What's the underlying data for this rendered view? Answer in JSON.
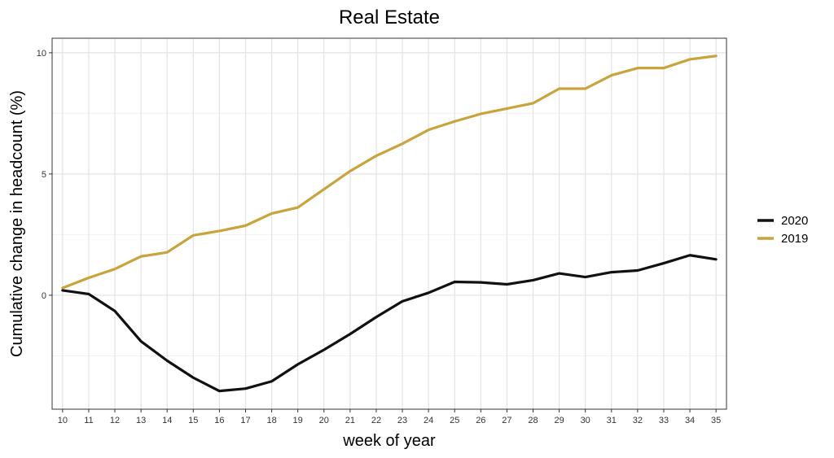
{
  "chart_data": {
    "type": "line",
    "title": "Real Estate",
    "xlabel": "week of year",
    "ylabel": "Cumulative change in headcount (%)",
    "x": [
      10,
      11,
      12,
      13,
      14,
      15,
      16,
      17,
      18,
      19,
      20,
      21,
      22,
      23,
      24,
      25,
      26,
      27,
      28,
      29,
      30,
      31,
      32,
      33,
      34,
      35
    ],
    "xlim": [
      9.6,
      35.4
    ],
    "ylim": [
      -4.7,
      10.6
    ],
    "yticks": [
      0,
      5,
      10
    ],
    "grid": true,
    "legend_position": "right",
    "series": [
      {
        "name": "2020",
        "color": "#111111",
        "values": [
          0.2,
          0.05,
          -0.65,
          -1.9,
          -2.7,
          -3.4,
          -3.95,
          -3.85,
          -3.55,
          -2.85,
          -2.25,
          -1.6,
          -0.9,
          -0.25,
          0.1,
          0.55,
          0.53,
          0.45,
          0.62,
          0.9,
          0.75,
          0.95,
          1.02,
          1.32,
          1.65,
          1.48
        ]
      },
      {
        "name": "2019",
        "color": "#C9A43A",
        "values": [
          0.3,
          0.72,
          1.08,
          1.6,
          1.77,
          2.47,
          2.65,
          2.87,
          3.37,
          3.62,
          4.37,
          5.12,
          5.75,
          6.25,
          6.82,
          7.17,
          7.48,
          7.7,
          7.92,
          8.52,
          8.52,
          9.07,
          9.37,
          9.37,
          9.73,
          9.87
        ]
      }
    ]
  }
}
